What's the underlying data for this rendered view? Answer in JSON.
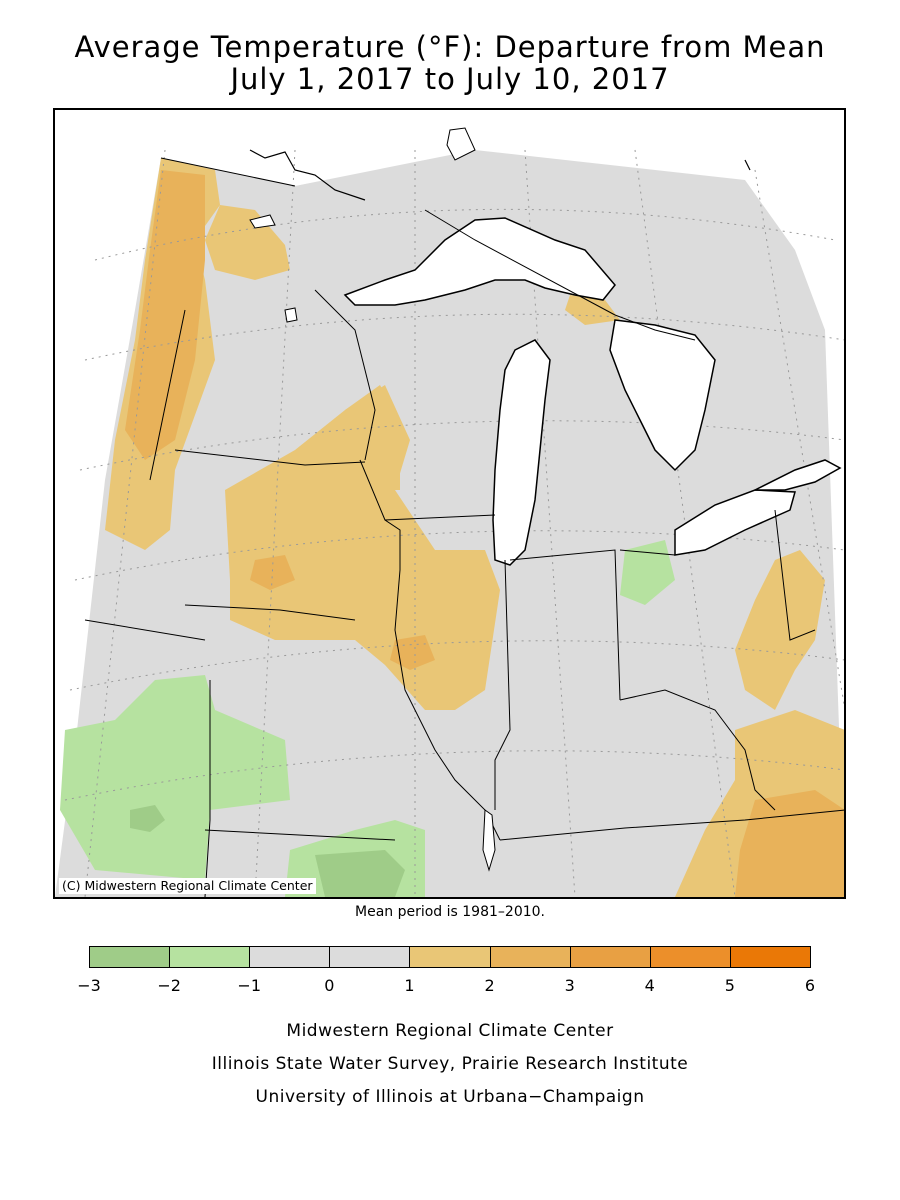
{
  "title": {
    "line1": "Average Temperature (°F): Departure from Mean",
    "line2": "July 1, 2017 to July 10, 2017"
  },
  "map": {
    "copyright": "(C) Midwestern Regional Climate Center",
    "colors": {
      "neutral": "#dcdcdc",
      "water": "#ffffff",
      "border": "#000000",
      "graticule": "#999999"
    },
    "anomaly_regions": [
      {
        "region": "western Minnesota / eastern Dakotas",
        "class": "1 to 2"
      },
      {
        "region": "far eastern North Dakota",
        "class": "2 to 3"
      },
      {
        "region": "northwest Minnesota",
        "class": "1 to 2"
      },
      {
        "region": "Iowa",
        "class": "1 to 2"
      },
      {
        "region": "central Iowa",
        "class": "2 to 3"
      },
      {
        "region": "northwest Illinois / southwest Wisconsin",
        "class": "1 to 2"
      },
      {
        "region": "western Illinois",
        "class": "2 to 3"
      },
      {
        "region": "Upper Peninsula of Michigan (east)",
        "class": "1 to 2"
      },
      {
        "region": "northwest Ohio",
        "class": "-2 to -1"
      },
      {
        "region": "southeast Ohio / West Virginia",
        "class": "1 to 2"
      },
      {
        "region": "eastern Kentucky / Tennessee",
        "class": "1 to 2"
      },
      {
        "region": "eastern Tennessee",
        "class": "2 to 3"
      },
      {
        "region": "eastern Nebraska / Kansas",
        "class": "-2 to -1"
      },
      {
        "region": "southeast Kansas",
        "class": "-3 to -2"
      },
      {
        "region": "southern Missouri",
        "class": "-2 to -1"
      },
      {
        "region": "southern Missouri core",
        "class": "-3 to -2"
      }
    ]
  },
  "mean_note": "Mean period is 1981–2010.",
  "legend": {
    "ticks": [
      "−3",
      "−2",
      "−1",
      "0",
      "1",
      "2",
      "3",
      "4",
      "5",
      "6"
    ],
    "colors": [
      "#9fcc88",
      "#b6e2a0",
      "#dcdcdc",
      "#dcdcdc",
      "#e9c676",
      "#e8b25a",
      "#e8a043",
      "#ec8f2a",
      "#ea7806"
    ]
  },
  "credits": {
    "line1": "Midwestern Regional Climate Center",
    "line2": "Illinois State Water Survey, Prairie Research Institute",
    "line3": "University of Illinois at Urbana−Champaign"
  }
}
